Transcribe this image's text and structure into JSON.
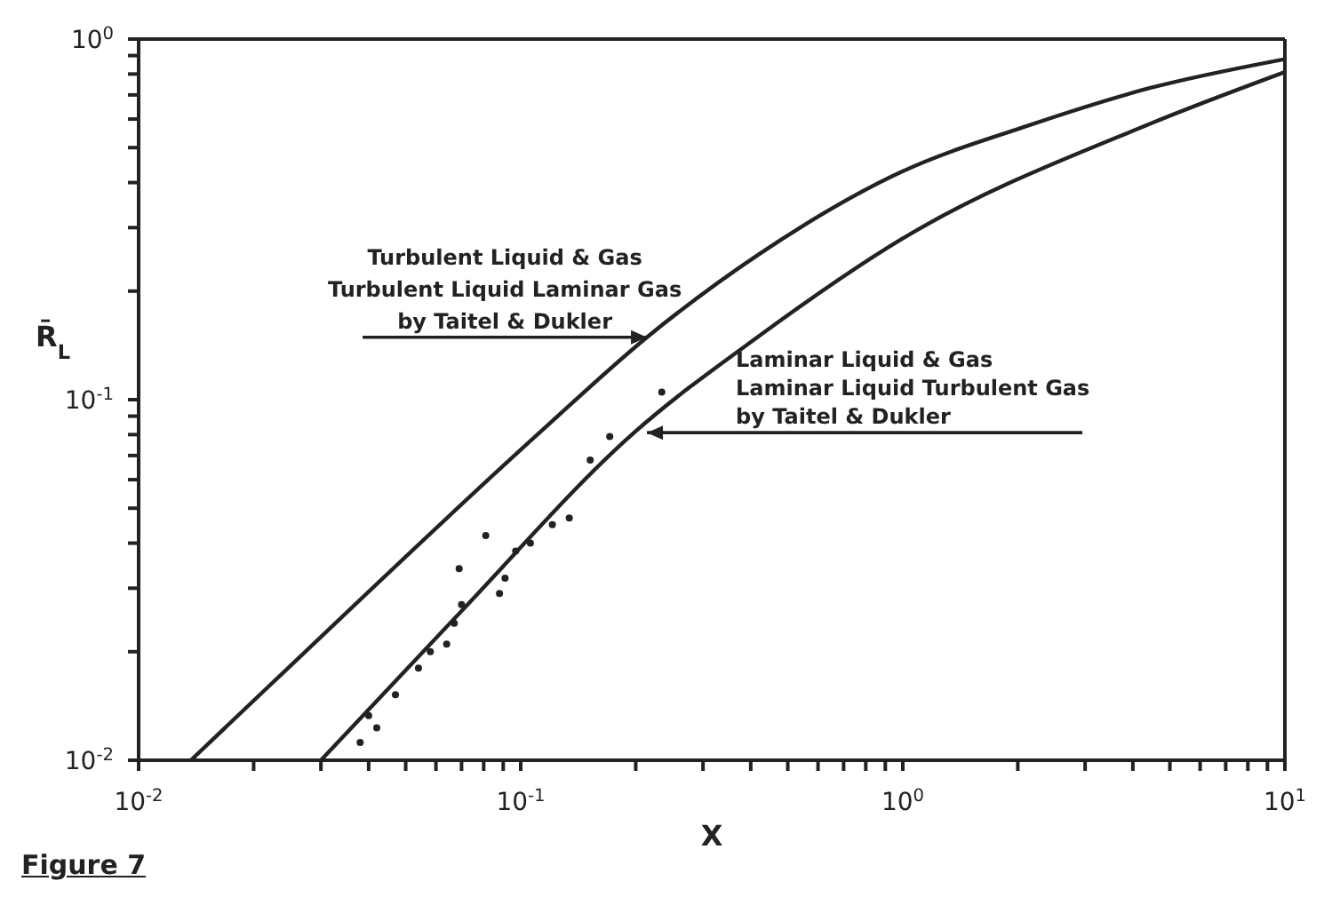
{
  "chart_data": {
    "type": "line",
    "xlabel": "X",
    "ylabel": "R̄$_{L}$",
    "log": "xy",
    "xlim": [
      0.01,
      10
    ],
    "ylim": [
      0.01,
      1
    ],
    "xticks": [
      {
        "value": 0.01,
        "label": "10$^{-2}$"
      },
      {
        "value": 0.02,
        "label": null
      },
      {
        "value": 0.03,
        "label": null
      },
      {
        "value": 0.04,
        "label": null
      },
      {
        "value": 0.05,
        "label": null
      },
      {
        "value": 0.06,
        "label": null
      },
      {
        "value": 0.07,
        "label": null
      },
      {
        "value": 0.08,
        "label": null
      },
      {
        "value": 0.09,
        "label": null
      },
      {
        "value": 0.1,
        "label": "10$^{-1}$"
      },
      {
        "value": 0.2,
        "label": null
      },
      {
        "value": 0.3,
        "label": null
      },
      {
        "value": 0.4,
        "label": null
      },
      {
        "value": 0.5,
        "label": null
      },
      {
        "value": 0.6,
        "label": null
      },
      {
        "value": 0.7,
        "label": null
      },
      {
        "value": 0.8,
        "label": null
      },
      {
        "value": 0.9,
        "label": null
      },
      {
        "value": 1,
        "label": "10$^{0}$"
      },
      {
        "value": 2,
        "label": null
      },
      {
        "value": 3,
        "label": null
      },
      {
        "value": 4,
        "label": null
      },
      {
        "value": 5,
        "label": null
      },
      {
        "value": 6,
        "label": null
      },
      {
        "value": 7,
        "label": null
      },
      {
        "value": 8,
        "label": null
      },
      {
        "value": 9,
        "label": null
      },
      {
        "value": 10,
        "label": "10$^{1}$"
      }
    ],
    "yticks": [
      {
        "value": 0.01,
        "label": "10$^{-2}$"
      },
      {
        "value": 0.02,
        "label": null
      },
      {
        "value": 0.03,
        "label": null
      },
      {
        "value": 0.04,
        "label": null
      },
      {
        "value": 0.05,
        "label": null
      },
      {
        "value": 0.06,
        "label": null
      },
      {
        "value": 0.07,
        "label": null
      },
      {
        "value": 0.08,
        "label": null
      },
      {
        "value": 0.09,
        "label": null
      },
      {
        "value": 0.1,
        "label": "10$^{-1}$"
      },
      {
        "value": 0.2,
        "label": null
      },
      {
        "value": 0.3,
        "label": null
      },
      {
        "value": 0.4,
        "label": null
      },
      {
        "value": 0.5,
        "label": null
      },
      {
        "value": 0.6,
        "label": null
      },
      {
        "value": 0.7,
        "label": null
      },
      {
        "value": 0.8,
        "label": null
      },
      {
        "value": 0.9,
        "label": null
      },
      {
        "value": 1,
        "label": "10$^{0}$"
      }
    ],
    "series": [
      {
        "color": "#222222",
        "x": [
          0.0137,
          0.022,
          0.112,
          0.214,
          0.42,
          1,
          2.07,
          4.4,
          10
        ],
        "values": [
          0.01,
          0.0161,
          0.081,
          0.149,
          0.253,
          0.43,
          0.57,
          0.73,
          0.88
        ]
      },
      {
        "color": "#222222",
        "x": [
          0.03,
          0.0687,
          0.198,
          0.42,
          1,
          4.4,
          10
        ],
        "values": [
          0.01,
          0.0254,
          0.081,
          0.15,
          0.28,
          0.58,
          0.81
        ]
      },
      {
        "type": "scatter",
        "color": "#222222",
        "marker": "circle",
        "x": [
          0.038,
          0.042,
          0.04,
          0.047,
          0.054,
          0.058,
          0.064,
          0.067,
          0.07,
          0.069,
          0.081,
          0.088,
          0.091,
          0.097,
          0.106,
          0.121,
          0.134,
          0.152,
          0.171,
          0.234
        ],
        "values": [
          0.0112,
          0.0123,
          0.0133,
          0.0152,
          0.018,
          0.02,
          0.021,
          0.024,
          0.027,
          0.034,
          0.042,
          0.029,
          0.032,
          0.038,
          0.04,
          0.045,
          0.047,
          0.068,
          0.079,
          0.105
        ]
      }
    ],
    "annotations": [
      {
        "text": "Turbulent Liquid & Gas\nTurbulent Liquid Laminar Gas\nby Taitel & Dukler",
        "x": 0.214,
        "y": 0.149
      },
      {
        "text": "Laminar Liquid & Gas\nLaminar Liquid Turbulent Gas\nby Taitel & Dukler",
        "x": 0.214,
        "y": 0.081
      },
      "Figure 7"
    ]
  }
}
